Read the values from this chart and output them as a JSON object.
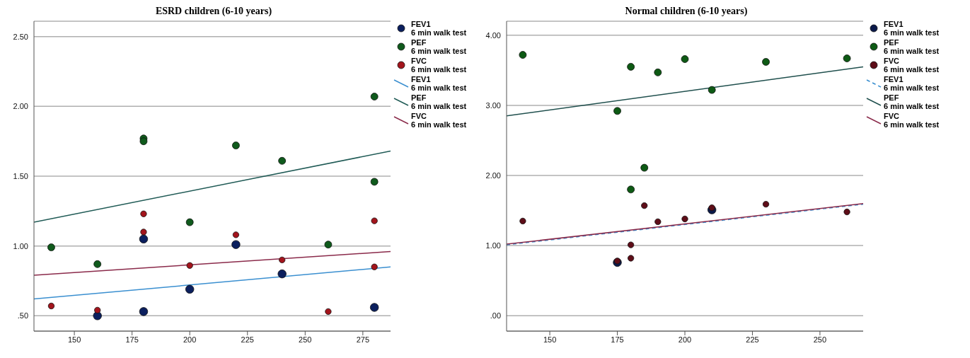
{
  "chart_data": [
    {
      "type": "scatter",
      "title": "ESRD children (6-10 years)",
      "xlim": [
        132.5,
        287
      ],
      "xticks": [
        150,
        175,
        200,
        225,
        250,
        275
      ],
      "ylim": [
        0.39,
        2.61
      ],
      "yticks": [
        {
          "value": 0.5,
          "label": ".50"
        },
        {
          "value": 1,
          "label": "1.00"
        },
        {
          "value": 1.5,
          "label": "1.50"
        },
        {
          "value": 2,
          "label": "2.00"
        },
        {
          "value": 2.5,
          "label": "2.50"
        }
      ],
      "grid": "y",
      "legend": "right",
      "series": [
        {
          "name": "FEV1\n6 min walk test",
          "marker": "circle",
          "color": "#0b1f5e",
          "x": [
            160,
            180,
            180,
            200,
            220,
            240,
            280
          ],
          "values": [
            0.5,
            1.05,
            0.53,
            0.69,
            1.01,
            0.8,
            0.56
          ]
        },
        {
          "name": "PEF\n6 min walk test",
          "marker": "circle",
          "color": "#0f5a1c",
          "x": [
            140,
            160,
            180,
            180,
            200,
            220,
            240,
            260,
            280,
            280
          ],
          "values": [
            0.99,
            0.87,
            1.77,
            1.75,
            1.17,
            1.72,
            1.61,
            1.01,
            2.07,
            1.46
          ]
        },
        {
          "name": "FVC\n6 min walk test",
          "marker": "circle",
          "color": "#a3141c",
          "x": [
            140,
            160,
            180,
            180,
            200,
            220,
            240,
            260,
            280,
            280
          ],
          "values": [
            0.57,
            0.54,
            1.23,
            1.1,
            0.86,
            1.08,
            0.9,
            0.53,
            1.18,
            0.85
          ]
        },
        {
          "name": "FEV1\n6 min walk test",
          "type": "line",
          "marker": "none",
          "color": "#3a8fd0",
          "line_style": "solid",
          "x": [
            132.5,
            287
          ],
          "values": [
            0.62,
            0.85
          ]
        },
        {
          "name": "PEF\n6 min walk test",
          "type": "line",
          "marker": "none",
          "color": "#1f5a55",
          "line_style": "solid",
          "x": [
            132.5,
            287
          ],
          "values": [
            1.17,
            1.68
          ]
        },
        {
          "name": "FVC\n6 min walk test",
          "type": "line",
          "marker": "none",
          "color": "#8a2a4a",
          "line_style": "solid",
          "x": [
            132.5,
            287
          ],
          "values": [
            0.79,
            0.96
          ]
        }
      ]
    },
    {
      "type": "scatter",
      "title": "Normal children (6-10 years)",
      "xlim": [
        134,
        266
      ],
      "xticks": [
        150,
        175,
        200,
        225,
        250
      ],
      "ylim": [
        -0.22,
        4.2
      ],
      "yticks": [
        {
          "value": 0,
          "label": ".00"
        },
        {
          "value": 1,
          "label": "1.00"
        },
        {
          "value": 2,
          "label": "2.00"
        },
        {
          "value": 3,
          "label": "3.00"
        },
        {
          "value": 4,
          "label": "4.00"
        }
      ],
      "grid": "y",
      "legend": "right",
      "series": [
        {
          "name": "FEV1\n6 min walk test",
          "marker": "circle",
          "color": "#0b1a4a",
          "x": [
            175,
            210
          ],
          "values": [
            0.76,
            1.51
          ]
        },
        {
          "name": "PEF\n6 min walk test",
          "marker": "circle",
          "color": "#0d5a14",
          "x": [
            140,
            175,
            180,
            180,
            185,
            190,
            200,
            210,
            230,
            260
          ],
          "values": [
            3.72,
            2.92,
            3.55,
            1.8,
            2.11,
            3.47,
            3.66,
            3.22,
            3.62,
            3.67
          ]
        },
        {
          "name": "FVC\n6 min walk test",
          "marker": "circle",
          "color": "#5e0d18",
          "x": [
            140,
            175,
            180,
            180,
            185,
            190,
            200,
            210,
            230,
            260
          ],
          "values": [
            1.35,
            0.78,
            1.01,
            0.82,
            1.57,
            1.34,
            1.38,
            1.54,
            1.59,
            1.48
          ]
        },
        {
          "name": "FEV1\n6 min walk test",
          "type": "line",
          "marker": "none",
          "color": "#3a8fd0",
          "line_style": "dashed",
          "x": [
            134,
            266
          ],
          "values": [
            1.01,
            1.59
          ]
        },
        {
          "name": "PEF\n6 min walk test",
          "type": "line",
          "marker": "none",
          "color": "#1f4f4d",
          "line_style": "solid",
          "x": [
            134,
            266
          ],
          "values": [
            2.85,
            3.55
          ]
        },
        {
          "name": "FVC\n6 min walk test",
          "type": "line",
          "marker": "none",
          "color": "#8a2a4a",
          "line_style": "solid",
          "x": [
            134,
            266
          ],
          "values": [
            1.02,
            1.6
          ]
        }
      ]
    }
  ]
}
